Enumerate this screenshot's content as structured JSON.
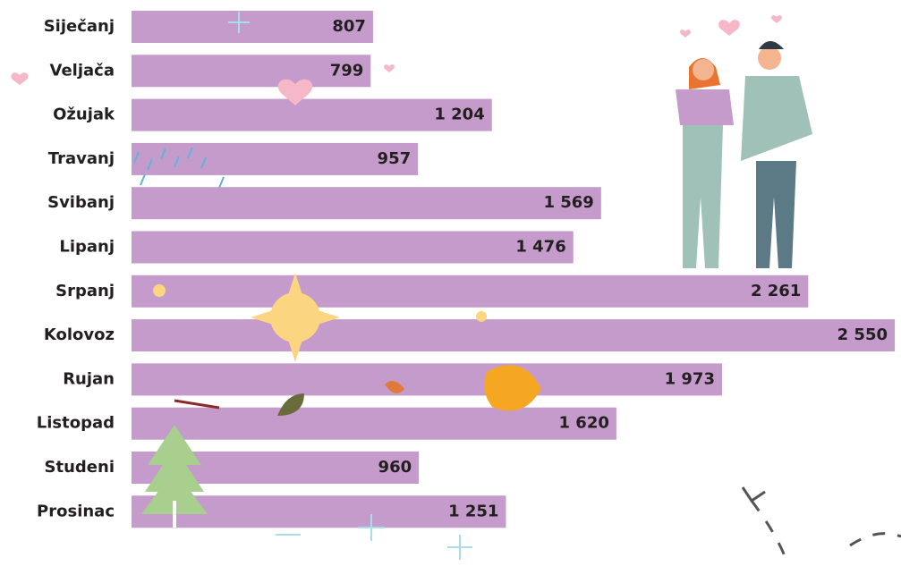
{
  "chart_data": {
    "type": "bar",
    "orientation": "horizontal",
    "color": "#c49bcb",
    "categories": [
      "Siječanj",
      "Veljača",
      "Ožujak",
      "Travanj",
      "Svibanj",
      "Lipanj",
      "Srpanj",
      "Kolovoz",
      "Rujan",
      "Listopad",
      "Studeni",
      "Prosinac"
    ],
    "values": [
      807,
      799,
      1204,
      957,
      1569,
      1476,
      2261,
      2550,
      1973,
      1620,
      960,
      1251
    ],
    "value_labels": [
      "807",
      "799",
      "1 204",
      "957",
      "1 569",
      "1 476",
      "2 261",
      "2 550",
      "1 973",
      "1 620",
      "960",
      "1 251"
    ]
  }
}
